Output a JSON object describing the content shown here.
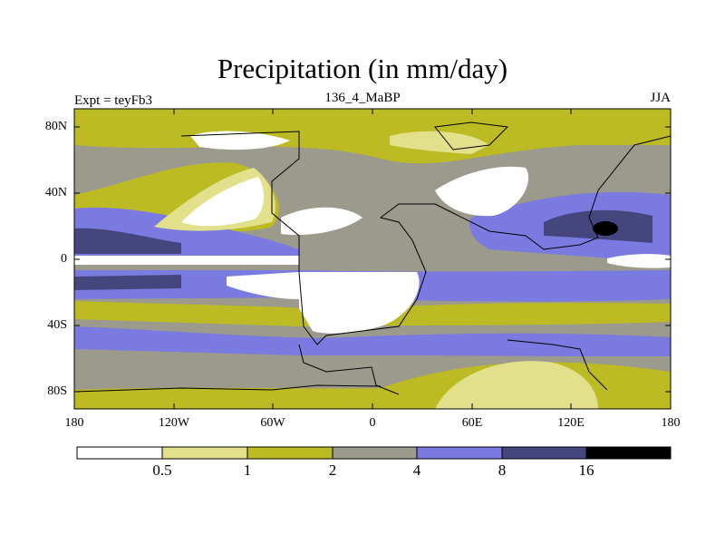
{
  "title": "Precipitation (in mm/day)",
  "left_label": "Expt = teyFb3",
  "center_label": "136_4_MaBP",
  "right_label": "JJA",
  "map": {
    "lat_ticks": [
      "80N",
      "40N",
      "0",
      "40S",
      "80S"
    ],
    "lon_ticks": [
      "180",
      "120W",
      "60W",
      "0",
      "60E",
      "120E",
      "180"
    ]
  },
  "colorbar": {
    "boundaries": [
      "0.5",
      "1",
      "2",
      "4",
      "8",
      "16"
    ],
    "colors": [
      "#ffffff",
      "#e3e08c",
      "#bcbb24",
      "#9b9a8c",
      "#7a7ae0",
      "#46467e",
      "#000000"
    ]
  }
}
